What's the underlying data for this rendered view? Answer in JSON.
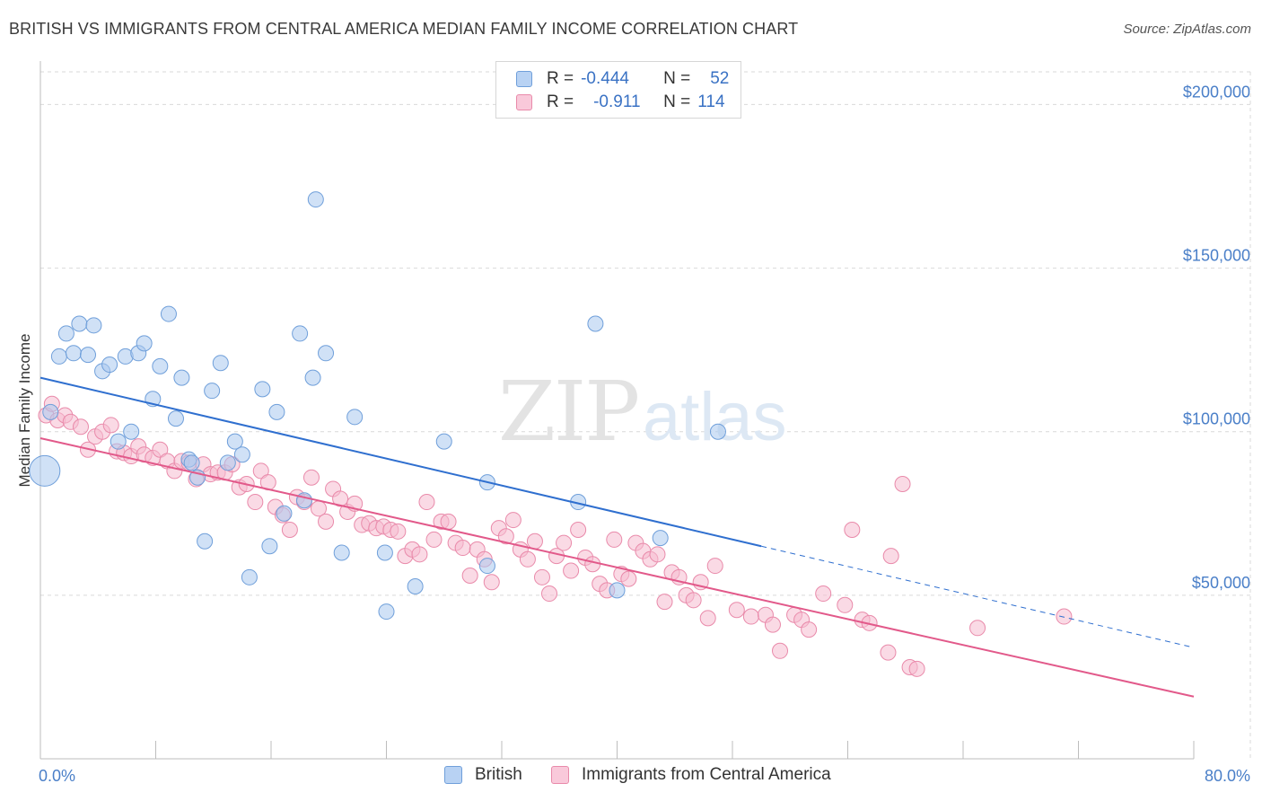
{
  "header": {
    "title": "BRITISH VS IMMIGRANTS FROM CENTRAL AMERICA MEDIAN FAMILY INCOME CORRELATION CHART",
    "source": "Source: ZipAtlas.com"
  },
  "watermark": {
    "part1": "ZIP",
    "part2": "atlas"
  },
  "legend": {
    "rows": [
      {
        "r_label": "R =",
        "r_value": "-0.444",
        "n_label": "N =",
        "n_value": "52"
      },
      {
        "r_label": "R =",
        "r_value": "-0.911",
        "n_label": "N =",
        "n_value": "114"
      }
    ]
  },
  "bottom_legend": {
    "series1": "British",
    "series2": "Immigrants from Central America"
  },
  "colors": {
    "british_fill": "#a9c8ef",
    "british_stroke": "#6f9fda",
    "british_line": "#2f6fcf",
    "central_fill": "#f6bcd0",
    "central_stroke": "#e98aaa",
    "central_line": "#e2598a",
    "tick_label": "#4a7fc8",
    "grid": "#d9d9d9"
  },
  "chart_data": {
    "type": "scatter",
    "title": "BRITISH VS IMMIGRANTS FROM CENTRAL AMERICA MEDIAN FAMILY INCOME CORRELATION CHART",
    "xlabel": "",
    "ylabel": "Median Family Income",
    "xlim": [
      0,
      80
    ],
    "ylim": [
      0,
      210000
    ],
    "x_tick_labels": [
      "0.0%",
      "80.0%"
    ],
    "y_ticks": [
      50000,
      100000,
      150000,
      200000
    ],
    "y_tick_labels": [
      "$50,000",
      "$100,000",
      "$150,000",
      "$200,000"
    ],
    "grid": true,
    "series": [
      {
        "name": "British",
        "r": -0.444,
        "n": 52,
        "trend": {
          "x0": 0,
          "y0": 116500,
          "x_solid_end": 50,
          "y_solid_end": 65000,
          "x1": 80,
          "y1": 34000
        },
        "points": [
          [
            0.3,
            88000
          ],
          [
            0.7,
            106000
          ],
          [
            1.3,
            123000
          ],
          [
            1.8,
            130000
          ],
          [
            2.3,
            124000
          ],
          [
            2.7,
            133000
          ],
          [
            3.3,
            123500
          ],
          [
            3.7,
            132500
          ],
          [
            4.3,
            118500
          ],
          [
            4.8,
            120500
          ],
          [
            5.4,
            97000
          ],
          [
            5.9,
            123000
          ],
          [
            6.3,
            100000
          ],
          [
            6.8,
            124000
          ],
          [
            7.2,
            127000
          ],
          [
            7.8,
            110000
          ],
          [
            8.3,
            120000
          ],
          [
            8.9,
            136000
          ],
          [
            9.4,
            104000
          ],
          [
            9.8,
            116500
          ],
          [
            10.3,
            91500
          ],
          [
            10.9,
            86000
          ],
          [
            11.4,
            66500
          ],
          [
            11.9,
            112500
          ],
          [
            12.5,
            121000
          ],
          [
            13.0,
            90500
          ],
          [
            13.5,
            97000
          ],
          [
            14.0,
            93000
          ],
          [
            14.5,
            55500
          ],
          [
            15.4,
            113000
          ],
          [
            15.9,
            65000
          ],
          [
            16.4,
            106000
          ],
          [
            16.9,
            75000
          ],
          [
            18.0,
            130000
          ],
          [
            18.3,
            79000
          ],
          [
            18.9,
            116500
          ],
          [
            19.1,
            171000
          ],
          [
            19.8,
            124000
          ],
          [
            20.9,
            63000
          ],
          [
            21.8,
            104500
          ],
          [
            23.9,
            63000
          ],
          [
            24.0,
            45000
          ],
          [
            26.0,
            52700
          ],
          [
            28.0,
            97000
          ],
          [
            31.0,
            84500
          ],
          [
            31.0,
            59000
          ],
          [
            37.3,
            78500
          ],
          [
            38.5,
            133000
          ],
          [
            40.0,
            51500
          ],
          [
            43.0,
            67500
          ],
          [
            47.0,
            100000
          ],
          [
            10.5,
            90500
          ]
        ],
        "sizes_note": "point at x=0.3 is a larger bubble"
      },
      {
        "name": "Immigrants from Central America",
        "r": -0.911,
        "n": 114,
        "trend": {
          "x0": 0,
          "y0": 98000,
          "x1": 80,
          "y1": 19000
        },
        "points": [
          [
            0.4,
            105000
          ],
          [
            0.8,
            108500
          ],
          [
            1.2,
            103500
          ],
          [
            1.7,
            105000
          ],
          [
            2.1,
            103000
          ],
          [
            2.8,
            101500
          ],
          [
            3.3,
            94500
          ],
          [
            3.8,
            98500
          ],
          [
            4.3,
            100000
          ],
          [
            4.9,
            102000
          ],
          [
            5.3,
            94000
          ],
          [
            5.8,
            93500
          ],
          [
            6.3,
            92500
          ],
          [
            6.8,
            95500
          ],
          [
            7.2,
            93000
          ],
          [
            7.8,
            92000
          ],
          [
            8.3,
            94500
          ],
          [
            8.8,
            91000
          ],
          [
            9.3,
            88000
          ],
          [
            9.8,
            91000
          ],
          [
            10.3,
            90500
          ],
          [
            10.8,
            85500
          ],
          [
            11.3,
            90000
          ],
          [
            11.8,
            87000
          ],
          [
            12.3,
            87500
          ],
          [
            12.8,
            87500
          ],
          [
            13.3,
            90000
          ],
          [
            13.8,
            83000
          ],
          [
            14.3,
            84000
          ],
          [
            14.9,
            78500
          ],
          [
            15.3,
            88000
          ],
          [
            15.8,
            84500
          ],
          [
            16.3,
            77000
          ],
          [
            16.8,
            74500
          ],
          [
            17.3,
            70000
          ],
          [
            17.8,
            80000
          ],
          [
            18.3,
            78500
          ],
          [
            18.8,
            86000
          ],
          [
            19.3,
            76500
          ],
          [
            19.8,
            72500
          ],
          [
            20.3,
            82500
          ],
          [
            20.8,
            79500
          ],
          [
            21.3,
            75500
          ],
          [
            21.8,
            78000
          ],
          [
            22.3,
            71500
          ],
          [
            22.8,
            72000
          ],
          [
            23.3,
            70500
          ],
          [
            23.8,
            71000
          ],
          [
            24.3,
            70000
          ],
          [
            24.8,
            69500
          ],
          [
            25.3,
            62000
          ],
          [
            25.8,
            64000
          ],
          [
            26.3,
            62500
          ],
          [
            26.8,
            78500
          ],
          [
            27.3,
            67000
          ],
          [
            27.8,
            72500
          ],
          [
            28.3,
            72500
          ],
          [
            28.8,
            66000
          ],
          [
            29.3,
            64500
          ],
          [
            29.8,
            56000
          ],
          [
            30.3,
            64000
          ],
          [
            30.8,
            61000
          ],
          [
            31.3,
            54000
          ],
          [
            31.8,
            70500
          ],
          [
            32.3,
            68000
          ],
          [
            32.8,
            73000
          ],
          [
            33.3,
            64000
          ],
          [
            33.8,
            61000
          ],
          [
            34.3,
            66500
          ],
          [
            34.8,
            55500
          ],
          [
            35.3,
            50500
          ],
          [
            35.8,
            62000
          ],
          [
            36.3,
            66000
          ],
          [
            36.8,
            57500
          ],
          [
            37.3,
            70000
          ],
          [
            37.8,
            61500
          ],
          [
            38.3,
            59500
          ],
          [
            38.8,
            53500
          ],
          [
            39.3,
            51500
          ],
          [
            39.8,
            67000
          ],
          [
            40.3,
            56500
          ],
          [
            40.8,
            55000
          ],
          [
            41.3,
            66000
          ],
          [
            41.8,
            63500
          ],
          [
            42.3,
            61000
          ],
          [
            42.8,
            62500
          ],
          [
            43.3,
            48000
          ],
          [
            43.8,
            57000
          ],
          [
            44.3,
            55500
          ],
          [
            44.8,
            50000
          ],
          [
            45.3,
            48500
          ],
          [
            45.8,
            54000
          ],
          [
            46.3,
            43000
          ],
          [
            46.8,
            59000
          ],
          [
            48.3,
            45500
          ],
          [
            49.3,
            43500
          ],
          [
            50.3,
            44000
          ],
          [
            50.8,
            41000
          ],
          [
            51.3,
            33000
          ],
          [
            52.3,
            44000
          ],
          [
            52.8,
            42500
          ],
          [
            53.3,
            39500
          ],
          [
            54.3,
            50500
          ],
          [
            55.8,
            47000
          ],
          [
            56.3,
            70000
          ],
          [
            57.0,
            42500
          ],
          [
            57.5,
            41500
          ],
          [
            58.8,
            32500
          ],
          [
            59.0,
            62000
          ],
          [
            59.8,
            84000
          ],
          [
            60.3,
            28000
          ],
          [
            60.8,
            27500
          ],
          [
            65.0,
            40000
          ],
          [
            71.0,
            43500
          ]
        ]
      }
    ]
  }
}
